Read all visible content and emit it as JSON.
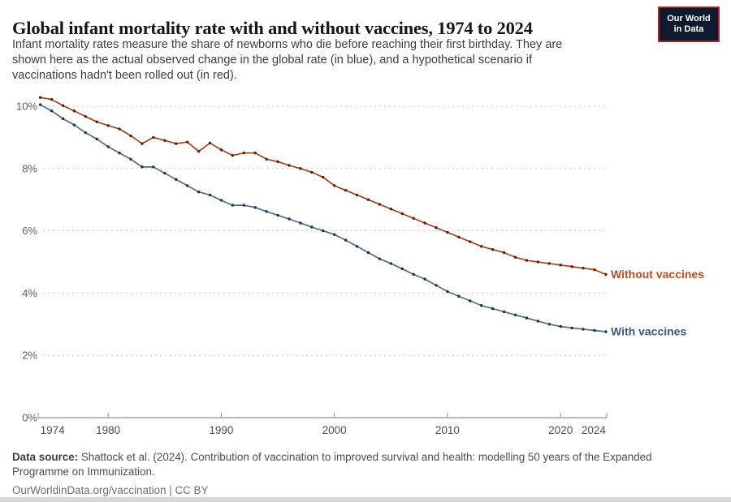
{
  "header": {
    "title": "Global infant mortality rate with and without vaccines, 1974 to 2024",
    "subtitle_lines": [
      "Infant mortality rates measure the share of newborns who die before reaching their first birthday. They are",
      "shown here as the actual observed change in the global rate (in blue), and a hypothetical scenario if",
      "vaccinations hadn't been rolled out (in red)."
    ],
    "logo": {
      "line1": "Our World",
      "line2": "in Data",
      "bg_color": "#101a2e",
      "border_color": "#9e2a2b"
    }
  },
  "chart_data": {
    "type": "line",
    "title": "Global infant mortality rate with and without vaccines, 1974 to 2024",
    "xlabel": "",
    "ylabel": "",
    "ylim": [
      0,
      10.5
    ],
    "grid": "horizontal-dashed",
    "legend_position": "end-of-line-labels",
    "yticks": [
      0,
      2,
      4,
      6,
      8,
      10
    ],
    "ytick_labels": [
      "0%",
      "2%",
      "4%",
      "6%",
      "8%",
      "10%"
    ],
    "xticks": [
      1980,
      1990,
      2000,
      2010,
      2020
    ],
    "xlabel_years": [
      1974,
      1980,
      1990,
      2000,
      2010,
      2020,
      2024
    ],
    "xlabel_texts": [
      "1974",
      "1980",
      "1990",
      "2000",
      "2010",
      "2020",
      "2024"
    ],
    "x": [
      1974,
      1975,
      1976,
      1977,
      1978,
      1979,
      1980,
      1981,
      1982,
      1983,
      1984,
      1985,
      1986,
      1987,
      1988,
      1989,
      1990,
      1991,
      1992,
      1993,
      1994,
      1995,
      1996,
      1997,
      1998,
      1999,
      2000,
      2001,
      2002,
      2003,
      2004,
      2005,
      2006,
      2007,
      2008,
      2009,
      2010,
      2011,
      2012,
      2013,
      2014,
      2015,
      2016,
      2017,
      2018,
      2019,
      2020,
      2021,
      2022,
      2023,
      2024
    ],
    "series": [
      {
        "name": "without-vaccines",
        "label": "Without vaccines",
        "color_line": "#a5431f",
        "color_dot": "#58200d",
        "color_label": "#b94e22",
        "values": [
          10.28,
          10.22,
          10.02,
          9.85,
          9.67,
          9.5,
          9.38,
          9.27,
          9.05,
          8.8,
          9.0,
          8.9,
          8.8,
          8.85,
          8.55,
          8.82,
          8.6,
          8.42,
          8.5,
          8.5,
          8.3,
          8.22,
          8.1,
          8.0,
          7.88,
          7.72,
          7.45,
          7.3,
          7.15,
          7.0,
          6.85,
          6.7,
          6.55,
          6.4,
          6.25,
          6.1,
          5.95,
          5.8,
          5.65,
          5.5,
          5.4,
          5.3,
          5.15,
          5.05,
          5.0,
          4.95,
          4.9,
          4.85,
          4.8,
          4.75,
          4.6
        ]
      },
      {
        "name": "with-vaccines",
        "label": "With vaccines",
        "color_line": "#4f6d8d",
        "color_dot": "#22313f",
        "color_label": "#3c5a7e",
        "values": [
          10.05,
          9.85,
          9.6,
          9.4,
          9.15,
          8.95,
          8.7,
          8.5,
          8.3,
          8.05,
          8.05,
          7.85,
          7.65,
          7.45,
          7.25,
          7.15,
          6.98,
          6.82,
          6.82,
          6.75,
          6.62,
          6.5,
          6.38,
          6.25,
          6.12,
          6.0,
          5.88,
          5.7,
          5.5,
          5.3,
          5.1,
          4.95,
          4.78,
          4.6,
          4.45,
          4.25,
          4.05,
          3.9,
          3.75,
          3.6,
          3.5,
          3.4,
          3.3,
          3.2,
          3.1,
          3.0,
          2.93,
          2.88,
          2.84,
          2.8,
          2.76
        ]
      }
    ]
  },
  "footer": {
    "source_label": "Data source:",
    "source_text": " Shattock et al. (2024). Contribution of vaccination to improved survival and health: modelling 50 years of the Expanded Programme on Immunization.",
    "license_line": "OurWorldinData.org/vaccination | CC BY"
  }
}
